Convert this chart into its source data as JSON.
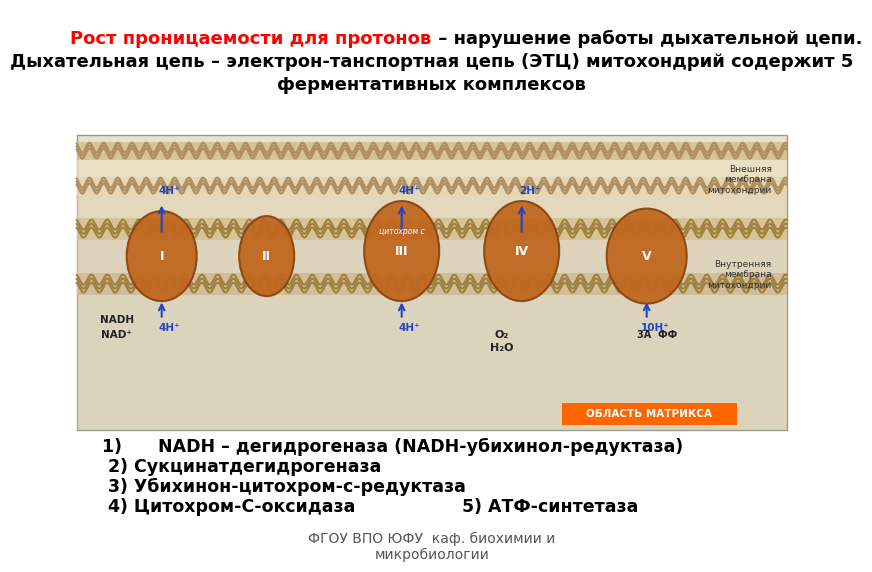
{
  "title_red": "Рост проницаемости для протонов",
  "title_black": " – нарушение работы дыхательной цепи.",
  "title_line2": "Дыхательная цепь – электрон-танспортная цепь (ЭТЦ) митохондрий содержит 5",
  "title_line3": "ферментативных комплексов",
  "item1": "1)      NADH – дегидрогеназа (NADH-убихинол-редуктаза)",
  "item2": " 2) Сукцинатдегидрогеназа",
  "item3": " 3) Убихинон-цитохром-с-редуктаза",
  "item4_left": " 4) Цитохром-С-оксидаза",
  "item4_right": "5) АТФ-синтетаза",
  "footer": "ФГОУ ВПО ЮФУ  каф. биохимии и\nмикробиологии",
  "bg_color": "#ffffff",
  "title_fontsize": 13.0,
  "body_fontsize": 12.5,
  "footer_fontsize": 10.0,
  "outer_mem_color": "#c8b89a",
  "inner_mem_color": "#b8a882",
  "protein_color": "#c06820",
  "membrane_bg": "#ddd0b0",
  "matrix_label_color": "#cc4400",
  "inter_mem_bg": "#e8dfc8",
  "matrix_bg": "#d8cdb0"
}
